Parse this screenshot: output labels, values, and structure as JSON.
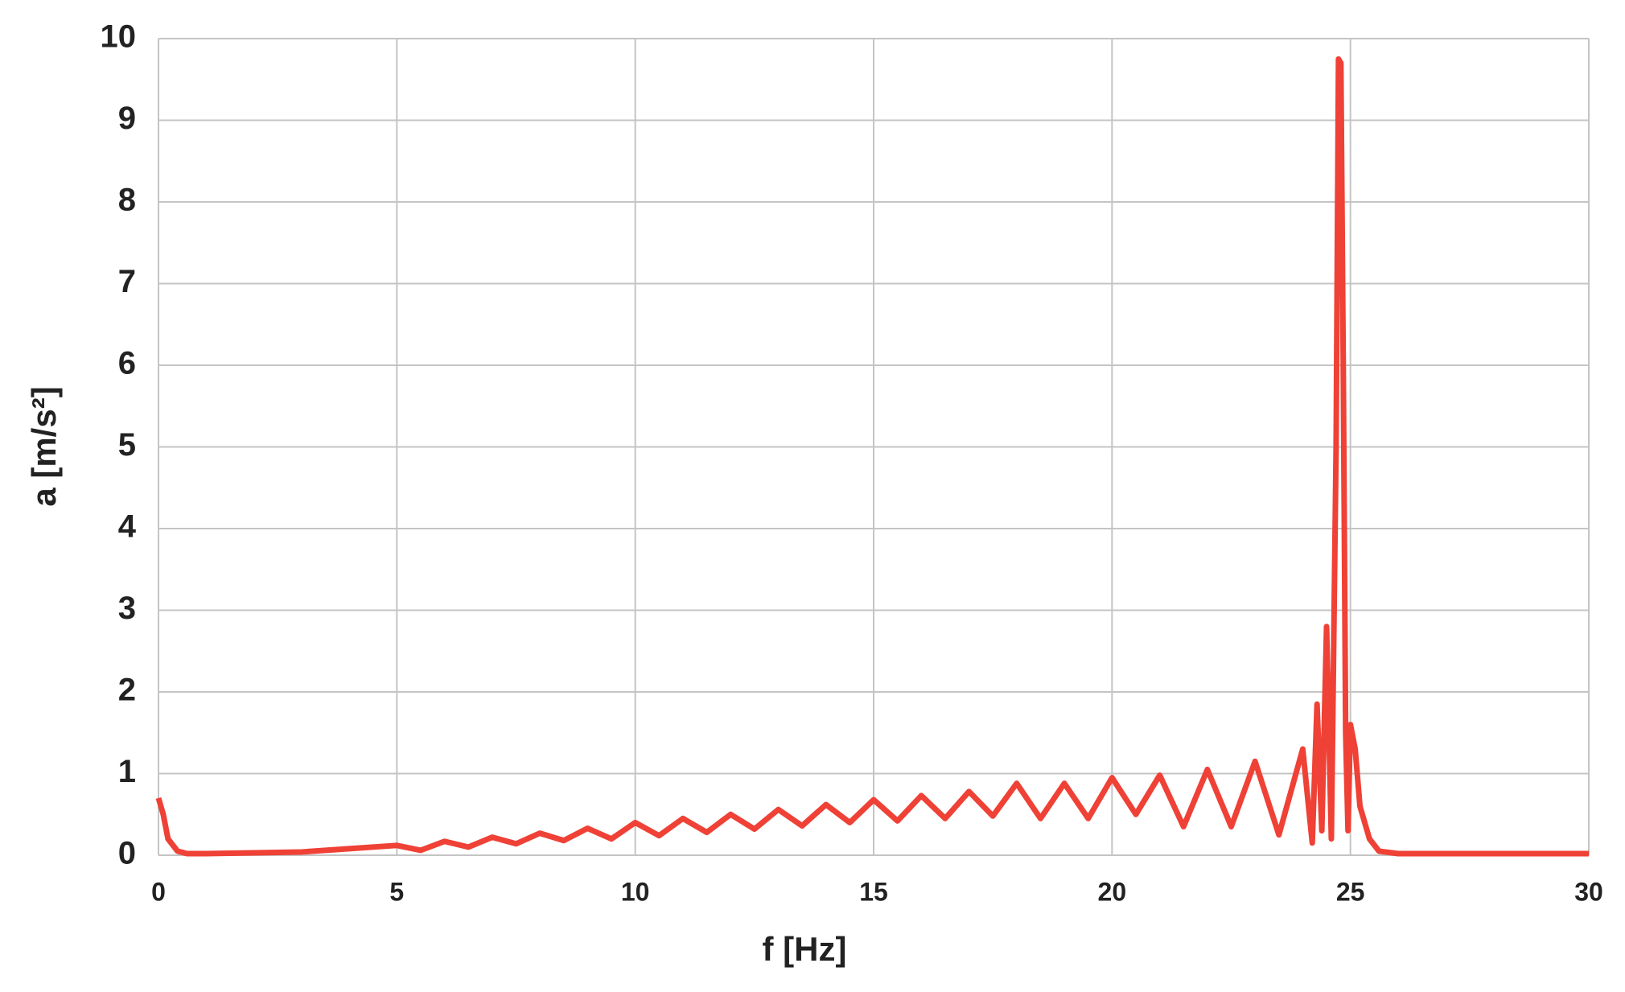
{
  "chart_data": {
    "type": "line",
    "x_label": "f [Hz]",
    "y_label": "a [m/s²]",
    "xlim": [
      0,
      30
    ],
    "ylim": [
      0,
      10
    ],
    "xticks": [
      0,
      5,
      10,
      15,
      20,
      25,
      30
    ],
    "yticks": [
      0,
      1,
      2,
      3,
      4,
      5,
      6,
      7,
      8,
      9,
      10
    ],
    "grid": true,
    "series": [
      {
        "color": "#ef4136",
        "x": [
          0,
          0.1,
          0.2,
          0.4,
          0.6,
          1,
          2,
          3,
          4,
          5,
          5.5,
          6,
          6.5,
          7,
          7.5,
          8,
          8.5,
          9,
          9.5,
          10,
          10.5,
          11,
          11.5,
          12,
          12.5,
          13,
          13.5,
          14,
          14.5,
          15,
          15.5,
          16,
          16.5,
          17,
          17.5,
          18,
          18.5,
          19,
          19.5,
          20,
          20.5,
          21,
          21.5,
          22,
          22.5,
          23,
          23.5,
          24,
          24.2,
          24.3,
          24.4,
          24.5,
          24.6,
          24.7,
          24.75,
          24.8,
          24.85,
          24.9,
          24.95,
          25,
          25.1,
          25.2,
          25.4,
          25.6,
          26,
          27,
          30
        ],
        "values": [
          0.7,
          0.5,
          0.2,
          0.05,
          0.02,
          0.02,
          0.03,
          0.04,
          0.08,
          0.12,
          0.06,
          0.17,
          0.1,
          0.22,
          0.14,
          0.27,
          0.18,
          0.33,
          0.2,
          0.4,
          0.24,
          0.45,
          0.28,
          0.5,
          0.32,
          0.56,
          0.36,
          0.62,
          0.4,
          0.68,
          0.42,
          0.73,
          0.45,
          0.78,
          0.48,
          0.88,
          0.45,
          0.88,
          0.45,
          0.95,
          0.5,
          0.98,
          0.35,
          1.05,
          0.35,
          1.15,
          0.25,
          1.3,
          0.15,
          1.85,
          0.3,
          2.8,
          0.2,
          5,
          9.75,
          9.7,
          6,
          1.5,
          0.3,
          1.6,
          1.3,
          0.6,
          0.2,
          0.05,
          0.02,
          0.02,
          0.02
        ]
      }
    ]
  }
}
